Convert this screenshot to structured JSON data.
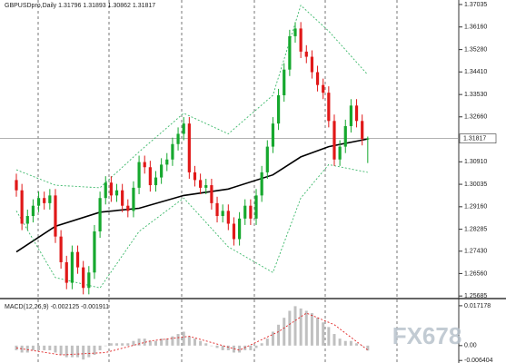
{
  "chart_data": {
    "type": "candlestick",
    "title": "GBPUSDpro,Daily 1.31796 1.31893 1.30862 1.31817",
    "open": [
      1.302,
      1.298,
      1.285,
      1.288,
      1.292,
      1.295,
      1.293,
      1.296,
      1.28,
      1.27,
      1.262,
      1.274,
      1.268,
      1.26,
      1.266,
      1.282,
      1.295,
      1.301,
      1.296,
      1.298,
      1.292,
      1.29,
      1.299,
      1.309,
      1.307,
      1.3,
      1.303,
      1.308,
      1.31,
      1.316,
      1.32,
      1.324,
      1.305,
      1.302,
      1.299,
      1.3,
      1.293,
      1.288,
      1.29,
      1.285,
      1.279,
      1.287,
      1.292,
      1.287,
      1.296,
      1.305,
      1.315,
      1.324,
      1.335,
      1.345,
      1.358,
      1.361,
      1.352,
      1.35,
      1.344,
      1.339,
      1.336,
      1.325,
      1.31,
      1.315,
      1.323,
      1.331,
      1.325,
      1.31796
    ],
    "high": [
      1.3045,
      1.3005,
      1.2905,
      1.2945,
      1.2975,
      1.2975,
      1.2985,
      1.2985,
      1.2825,
      1.2725,
      1.2765,
      1.2765,
      1.2705,
      1.2685,
      1.2845,
      1.2975,
      1.3035,
      1.3035,
      1.3005,
      1.3005,
      1.2945,
      1.3015,
      1.3115,
      1.3115,
      1.3095,
      1.3055,
      1.3105,
      1.3125,
      1.3185,
      1.3225,
      1.3265,
      1.3265,
      1.3075,
      1.3045,
      1.3025,
      1.3025,
      1.2955,
      1.2925,
      1.2925,
      1.2875,
      1.2895,
      1.2945,
      1.2945,
      1.2985,
      1.3075,
      1.3175,
      1.3265,
      1.3375,
      1.3475,
      1.3605,
      1.3635,
      1.3635,
      1.3545,
      1.3525,
      1.3465,
      1.3415,
      1.3385,
      1.3275,
      1.3175,
      1.3255,
      1.3335,
      1.3335,
      1.3275,
      1.31893
    ],
    "low": [
      1.2955,
      1.2825,
      1.2825,
      1.2855,
      1.2895,
      1.2905,
      1.2905,
      1.2775,
      1.2675,
      1.2595,
      1.2595,
      1.2655,
      1.2575,
      1.2575,
      1.2635,
      1.2795,
      1.2925,
      1.2935,
      1.2935,
      1.2895,
      1.2875,
      1.2875,
      1.2965,
      1.3045,
      1.2975,
      1.2975,
      1.3005,
      1.3055,
      1.3075,
      1.3135,
      1.3175,
      1.3025,
      1.2995,
      1.2965,
      1.2965,
      1.2905,
      1.2855,
      1.2855,
      1.2825,
      1.2765,
      1.2765,
      1.2845,
      1.2845,
      1.2845,
      1.2935,
      1.3025,
      1.3125,
      1.3215,
      1.3325,
      1.3425,
      1.3555,
      1.3495,
      1.3475,
      1.3415,
      1.3365,
      1.3335,
      1.3225,
      1.3075,
      1.3075,
      1.3125,
      1.3205,
      1.3225,
      1.3155,
      1.30862
    ],
    "close": [
      1.298,
      1.285,
      1.288,
      1.292,
      1.295,
      1.293,
      1.296,
      1.28,
      1.27,
      1.262,
      1.274,
      1.268,
      1.26,
      1.266,
      1.282,
      1.295,
      1.301,
      1.296,
      1.298,
      1.292,
      1.29,
      1.299,
      1.309,
      1.307,
      1.3,
      1.303,
      1.308,
      1.31,
      1.316,
      1.32,
      1.324,
      1.305,
      1.302,
      1.299,
      1.3,
      1.293,
      1.288,
      1.29,
      1.285,
      1.279,
      1.287,
      1.292,
      1.287,
      1.296,
      1.305,
      1.315,
      1.324,
      1.335,
      1.345,
      1.358,
      1.361,
      1.352,
      1.35,
      1.344,
      1.339,
      1.336,
      1.325,
      1.31,
      1.315,
      1.323,
      1.331,
      1.325,
      1.31796,
      1.31817
    ],
    "up_color": "#16a82e",
    "down_color": "#e01818",
    "overlays": [
      {
        "x": [
          0,
          7,
          15,
          22,
          30,
          38,
          46,
          51,
          56,
          63
        ],
        "values": [
          1.274,
          1.284,
          1.2895,
          1.291,
          1.296,
          1.2985,
          1.304,
          1.311,
          1.315,
          1.318
        ],
        "color": "#000000",
        "dashed": false
      },
      {
        "x": [
          0,
          7,
          15,
          22,
          30,
          38,
          46,
          51,
          56,
          63
        ],
        "values": [
          1.306,
          1.3,
          1.299,
          1.313,
          1.328,
          1.32,
          1.335,
          1.37,
          1.36,
          1.343
        ],
        "color": "#3cb86a",
        "dashed": true
      },
      {
        "x": [
          0,
          7,
          15,
          22,
          30,
          38,
          46,
          51,
          56,
          63
        ],
        "values": [
          1.29,
          1.264,
          1.26,
          1.282,
          1.295,
          1.276,
          1.266,
          1.295,
          1.308,
          1.305
        ],
        "color": "#3cb86a",
        "dashed": true
      }
    ],
    "current_price": 1.31817,
    "ylim": [
      1.2555,
      1.3721
    ],
    "yticks": [
      1.37035,
      {
        "value": 1.3616,
        "label": "1.36160"
      },
      {
        "value": 1.3528,
        "label": "1.35280"
      },
      {
        "value": 1.3441,
        "label": "1.34410"
      },
      {
        "value": 1.3353,
        "label": "1.33530"
      },
      {
        "value": 1.3266,
        "label": "1.32660"
      },
      {
        "value": 1.3091,
        "label": "1.30910"
      },
      1.30035,
      {
        "value": 1.2916,
        "label": "1.29160"
      },
      1.28285,
      {
        "value": 1.2743,
        "label": "1.27430"
      },
      {
        "value": 1.2656,
        "label": "1.26560"
      },
      1.25685
    ],
    "macd": {
      "type": "bar",
      "label": "MACD(12,26,9) -0.002125 -0.001911",
      "values": [
        -0.002,
        -0.003,
        -0.003,
        -0.002,
        -0.002,
        -0.002,
        -0.002,
        -0.003,
        -0.004,
        -0.005,
        -0.005,
        -0.005,
        -0.006,
        -0.005,
        -0.004,
        -0.002,
        0.0,
        0.001,
        0.001,
        0.001,
        0.001,
        0.002,
        0.003,
        0.003,
        0.002,
        0.002,
        0.003,
        0.003,
        0.004,
        0.005,
        0.006,
        0.004,
        0.003,
        0.002,
        0.001,
        0.0,
        -0.001,
        -0.002,
        -0.002,
        -0.003,
        -0.003,
        -0.002,
        -0.002,
        -0.001,
        0.001,
        0.003,
        0.006,
        0.009,
        0.012,
        0.015,
        0.017,
        0.016,
        0.015,
        0.014,
        0.012,
        0.01,
        0.008,
        0.005,
        0.003,
        0.002,
        0.002,
        0.001,
        0.0,
        -0.002125
      ],
      "color": "#c0c0c0",
      "signal": {
        "x": [
          0,
          8,
          16,
          24,
          31,
          40,
          47,
          52,
          57,
          63
        ],
        "values": [
          -0.001,
          -0.004,
          -0.003,
          0.002,
          0.004,
          -0.002,
          0.006,
          0.014,
          0.009,
          -0.001911
        ],
        "color": "#e02020"
      },
      "ylim": [
        -0.0075,
        0.0191
      ],
      "yticks": [
        0.017178,
        {
          "value": 0,
          "label": "0.00"
        },
        -0.006404
      ]
    },
    "watermark": "FX678"
  }
}
